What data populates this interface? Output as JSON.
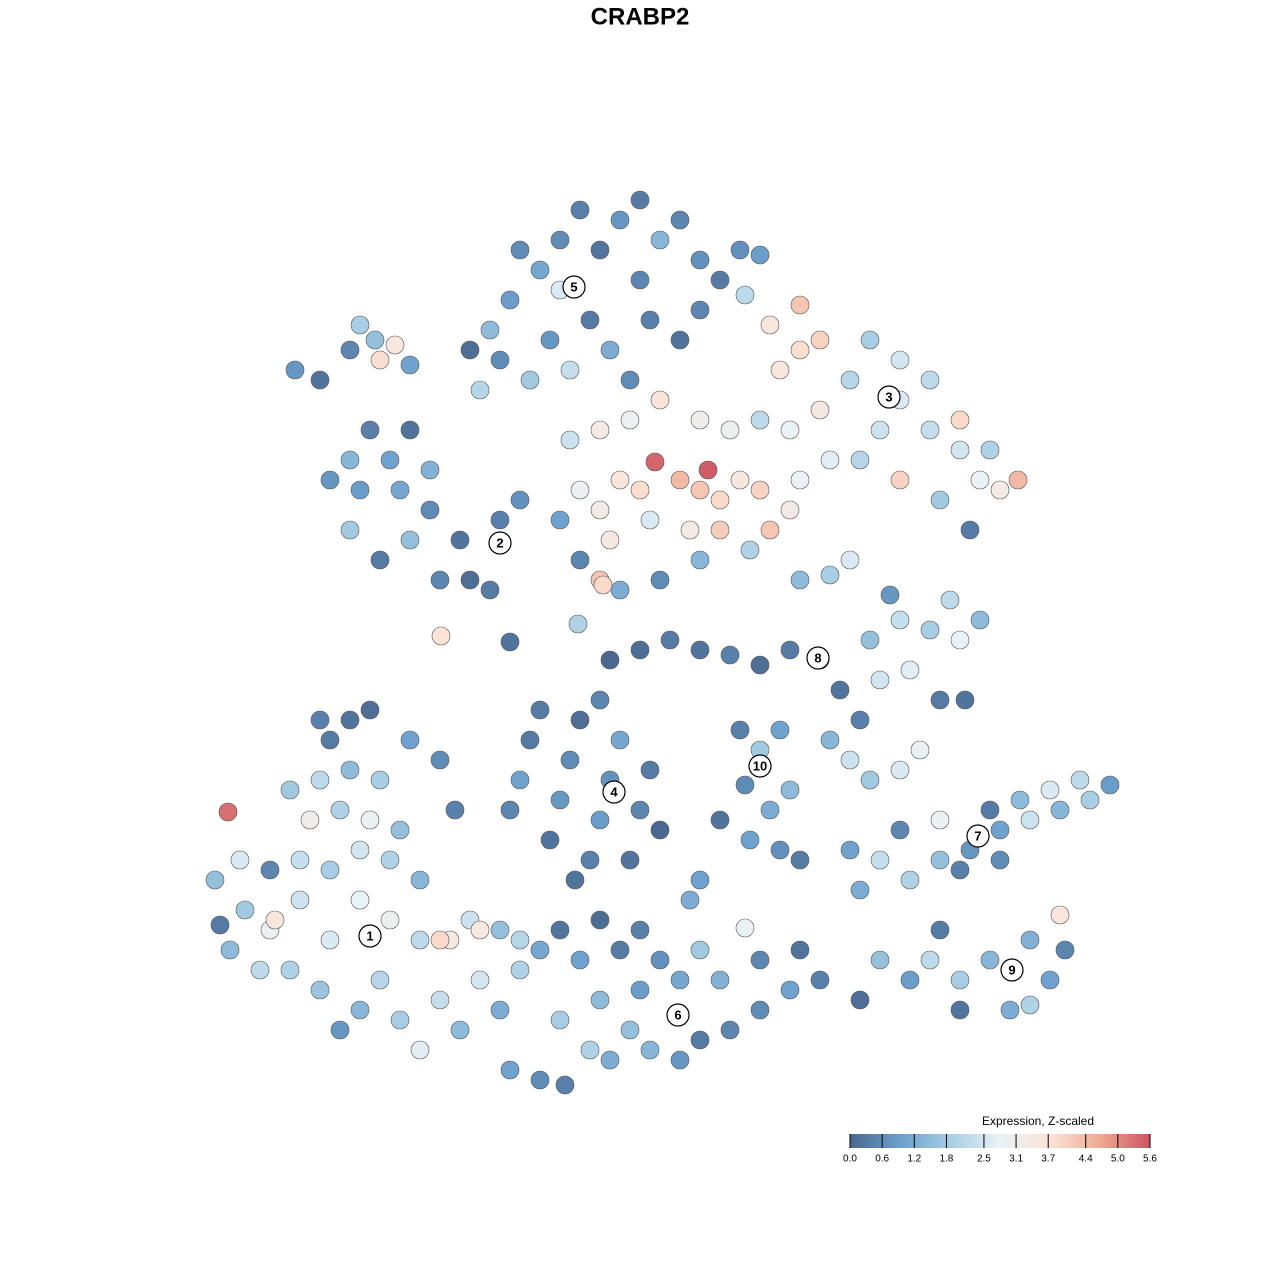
{
  "chart_data": {
    "type": "scatter",
    "title": "CRABP2",
    "xlim": [
      0,
      1280
    ],
    "ylim": [
      1280,
      0
    ],
    "colorbar_title": "Expression, Z-scaled",
    "clim": [
      0,
      5.6
    ],
    "colorscale": [
      "#4a6890",
      "#6b9fcc",
      "#a5cde3",
      "#e9f2f6",
      "#fbe3d6",
      "#efaa92",
      "#cb5461"
    ],
    "colorbar_ticks": [
      {
        "value": 0,
        "label": "0.0"
      },
      0.6,
      1.2,
      1.8,
      2.5,
      3.1,
      3.7,
      4.4,
      {
        "value": 5,
        "label": "5.0"
      },
      5.6
    ],
    "cluster_labels": [
      {
        "label": "1",
        "x": 370,
        "y": 344
      },
      {
        "label": "2",
        "x": 500,
        "y": 737
      },
      {
        "label": "3",
        "x": 889,
        "y": 883
      },
      {
        "label": "4",
        "x": 614,
        "y": 488
      },
      {
        "label": "5",
        "x": 574,
        "y": 993
      },
      {
        "label": "6",
        "x": 678,
        "y": 265
      },
      {
        "label": "7",
        "x": 978,
        "y": 444
      },
      {
        "label": "8",
        "x": 818,
        "y": 622
      },
      {
        "label": "9",
        "x": 1012,
        "y": 310
      },
      {
        "label": "10",
        "x": 760,
        "y": 514
      }
    ],
    "points": [
      [
        230,
        330,
        1.5
      ],
      [
        260,
        310,
        2.2
      ],
      [
        245,
        370,
        1.8
      ],
      [
        215,
        400,
        1.6
      ],
      [
        240,
        420,
        2.6
      ],
      [
        270,
        350,
        2.9
      ],
      [
        290,
        310,
        2.0
      ],
      [
        300,
        380,
        2.4
      ],
      [
        320,
        290,
        1.7
      ],
      [
        340,
        250,
        0.8
      ],
      [
        360,
        270,
        1.4
      ],
      [
        380,
        300,
        2.1
      ],
      [
        400,
        260,
        1.9
      ],
      [
        420,
        230,
        2.7
      ],
      [
        440,
        280,
        2.3
      ],
      [
        460,
        250,
        1.5
      ],
      [
        480,
        300,
        2.5
      ],
      [
        500,
        270,
        1.2
      ],
      [
        520,
        310,
        2.0
      ],
      [
        540,
        330,
        1.1
      ],
      [
        330,
        340,
        2.6
      ],
      [
        360,
        380,
        2.8
      ],
      [
        390,
        360,
        3.0
      ],
      [
        420,
        340,
        2.2
      ],
      [
        450,
        340,
        3.4
      ],
      [
        470,
        360,
        2.4
      ],
      [
        500,
        350,
        1.6
      ],
      [
        300,
        420,
        2.3
      ],
      [
        330,
        410,
        1.9
      ],
      [
        360,
        430,
        2.5
      ],
      [
        390,
        420,
        2.0
      ],
      [
        420,
        400,
        1.4
      ],
      [
        310,
        460,
        3.2
      ],
      [
        340,
        470,
        2.0
      ],
      [
        370,
        460,
        2.9
      ],
      [
        400,
        450,
        1.6
      ],
      [
        290,
        490,
        1.8
      ],
      [
        320,
        500,
        2.2
      ],
      [
        350,
        510,
        1.5
      ],
      [
        380,
        500,
        1.9
      ],
      [
        330,
        540,
        0.3
      ],
      [
        350,
        560,
        0.2
      ],
      [
        370,
        570,
        0.1
      ],
      [
        320,
        560,
        0.4
      ],
      [
        410,
        540,
        1.0
      ],
      [
        440,
        520,
        0.6
      ],
      [
        228,
        468,
        5.3
      ],
      [
        275,
        360,
        3.6
      ],
      [
        440,
        340,
        3.9
      ],
      [
        480,
        350,
        3.4
      ],
      [
        220,
        355,
        0.3
      ],
      [
        270,
        410,
        0.5
      ],
      [
        455,
        470,
        0.4
      ],
      [
        510,
        210,
        1.0
      ],
      [
        540,
        200,
        0.6
      ],
      [
        565,
        195,
        0.4
      ],
      [
        590,
        230,
        2.0
      ],
      [
        610,
        220,
        1.2
      ],
      [
        630,
        250,
        1.6
      ],
      [
        650,
        230,
        1.4
      ],
      [
        680,
        220,
        0.8
      ],
      [
        700,
        240,
        0.3
      ],
      [
        730,
        250,
        0.5
      ],
      [
        760,
        270,
        0.6
      ],
      [
        790,
        290,
        1.0
      ],
      [
        820,
        300,
        0.4
      ],
      [
        560,
        260,
        1.9
      ],
      [
        600,
        280,
        1.5
      ],
      [
        640,
        290,
        0.9
      ],
      [
        680,
        300,
        1.1
      ],
      [
        720,
        300,
        1.3
      ],
      [
        760,
        320,
        0.5
      ],
      [
        800,
        330,
        0.2
      ],
      [
        580,
        320,
        1.0
      ],
      [
        620,
        330,
        0.3
      ],
      [
        660,
        320,
        0.7
      ],
      [
        700,
        330,
        1.8
      ],
      [
        520,
        340,
        2.1
      ],
      [
        560,
        350,
        0.2
      ],
      [
        600,
        360,
        0.1
      ],
      [
        640,
        350,
        0.4
      ],
      [
        745,
        352,
        2.8
      ],
      [
        690,
        380,
        1.2
      ],
      [
        700,
        400,
        1.0
      ],
      [
        880,
        320,
        1.6
      ],
      [
        910,
        300,
        0.9
      ],
      [
        930,
        320,
        2.2
      ],
      [
        960,
        300,
        1.9
      ],
      [
        990,
        320,
        1.4
      ],
      [
        1010,
        270,
        1.2
      ],
      [
        1030,
        275,
        2.0
      ],
      [
        1050,
        300,
        1.0
      ],
      [
        1065,
        330,
        0.5
      ],
      [
        1060,
        365,
        3.6
      ],
      [
        1030,
        340,
        1.3
      ],
      [
        960,
        270,
        0.2
      ],
      [
        940,
        350,
        0.3
      ],
      [
        860,
        280,
        0.1
      ],
      [
        860,
        390,
        1.2
      ],
      [
        880,
        420,
        2.3
      ],
      [
        910,
        400,
        2.0
      ],
      [
        940,
        420,
        1.6
      ],
      [
        970,
        430,
        0.8
      ],
      [
        1000,
        450,
        1.0
      ],
      [
        1030,
        460,
        2.4
      ],
      [
        1060,
        470,
        1.4
      ],
      [
        1090,
        480,
        1.9
      ],
      [
        1110,
        495,
        0.9
      ],
      [
        1080,
        500,
        2.2
      ],
      [
        1050,
        490,
        2.6
      ],
      [
        1020,
        480,
        1.5
      ],
      [
        990,
        470,
        0.3
      ],
      [
        960,
        410,
        0.4
      ],
      [
        940,
        460,
        2.9
      ],
      [
        1000,
        420,
        0.6
      ],
      [
        850,
        430,
        1.0
      ],
      [
        900,
        450,
        0.5
      ],
      [
        510,
        470,
        0.5
      ],
      [
        520,
        500,
        1.0
      ],
      [
        530,
        540,
        0.3
      ],
      [
        550,
        440,
        0.2
      ],
      [
        560,
        480,
        0.8
      ],
      [
        570,
        520,
        0.6
      ],
      [
        580,
        560,
        0.1
      ],
      [
        590,
        420,
        0.4
      ],
      [
        600,
        460,
        0.9
      ],
      [
        610,
        500,
        0.7
      ],
      [
        620,
        540,
        1.1
      ],
      [
        630,
        420,
        0.2
      ],
      [
        640,
        470,
        0.5
      ],
      [
        650,
        510,
        0.3
      ],
      [
        660,
        450,
        0.0
      ],
      [
        540,
        570,
        0.3
      ],
      [
        600,
        580,
        0.5
      ],
      [
        575,
        400,
        0.2
      ],
      [
        750,
        440,
        1.0
      ],
      [
        780,
        430,
        0.7
      ],
      [
        770,
        470,
        1.2
      ],
      [
        745,
        495,
        0.6
      ],
      [
        790,
        490,
        1.5
      ],
      [
        760,
        530,
        1.8
      ],
      [
        780,
        550,
        1.0
      ],
      [
        740,
        550,
        0.4
      ],
      [
        720,
        460,
        0.2
      ],
      [
        800,
        420,
        0.3
      ],
      [
        830,
        540,
        1.4
      ],
      [
        850,
        520,
        2.4
      ],
      [
        870,
        500,
        1.8
      ],
      [
        900,
        510,
        2.6
      ],
      [
        920,
        530,
        2.9
      ],
      [
        860,
        560,
        0.4
      ],
      [
        840,
        590,
        0.2
      ],
      [
        880,
        600,
        2.5
      ],
      [
        910,
        610,
        2.7
      ],
      [
        940,
        580,
        0.3
      ],
      [
        965,
        580,
        0.2
      ],
      [
        870,
        640,
        1.6
      ],
      [
        900,
        660,
        2.3
      ],
      [
        930,
        650,
        1.9
      ],
      [
        960,
        640,
        2.8
      ],
      [
        980,
        660,
        1.5
      ],
      [
        890,
        685,
        0.8
      ],
      [
        950,
        680,
        2.2
      ],
      [
        820,
        620,
        0.6
      ],
      [
        790,
        630,
        0.3
      ],
      [
        760,
        615,
        0.1
      ],
      [
        730,
        625,
        0.4
      ],
      [
        700,
        630,
        0.2
      ],
      [
        670,
        640,
        0.3
      ],
      [
        640,
        630,
        0.1
      ],
      [
        610,
        620,
        0.0
      ],
      [
        330,
        800,
        0.8
      ],
      [
        350,
        820,
        1.4
      ],
      [
        370,
        850,
        0.4
      ],
      [
        390,
        820,
        1.0
      ],
      [
        410,
        850,
        0.2
      ],
      [
        430,
        810,
        1.3
      ],
      [
        350,
        750,
        1.8
      ],
      [
        380,
        720,
        0.3
      ],
      [
        410,
        740,
        1.6
      ],
      [
        440,
        700,
        0.5
      ],
      [
        470,
        700,
        0.1
      ],
      [
        490,
        690,
        0.3
      ],
      [
        460,
        740,
        0.2
      ],
      [
        430,
        770,
        0.6
      ],
      [
        400,
        790,
        1.1
      ],
      [
        500,
        760,
        0.4
      ],
      [
        520,
        780,
        0.7
      ],
      [
        360,
        790,
        0.9
      ],
      [
        295,
        910,
        0.8
      ],
      [
        320,
        900,
        0.2
      ],
      [
        350,
        930,
        0.5
      ],
      [
        375,
        940,
        1.6
      ],
      [
        395,
        935,
        3.5
      ],
      [
        380,
        920,
        3.8
      ],
      [
        360,
        955,
        1.9
      ],
      [
        410,
        915,
        1.0
      ],
      [
        560,
        760,
        1.0
      ],
      [
        580,
        790,
        2.9
      ],
      [
        600,
        770,
        3.2
      ],
      [
        620,
        800,
        3.6
      ],
      [
        640,
        790,
        3.8
      ],
      [
        655,
        818,
        5.4
      ],
      [
        680,
        800,
        4.4
      ],
      [
        700,
        790,
        4.2
      ],
      [
        708,
        810,
        5.5
      ],
      [
        720,
        780,
        3.9
      ],
      [
        740,
        800,
        3.5
      ],
      [
        760,
        790,
        4.0
      ],
      [
        770,
        750,
        4.2
      ],
      [
        790,
        770,
        3.3
      ],
      [
        800,
        800,
        2.9
      ],
      [
        830,
        820,
        2.7
      ],
      [
        610,
        740,
        3.4
      ],
      [
        650,
        760,
        2.6
      ],
      [
        690,
        750,
        3.3
      ],
      [
        720,
        750,
        4.1
      ],
      [
        750,
        730,
        2.0
      ],
      [
        700,
        720,
        1.4
      ],
      [
        660,
        700,
        0.6
      ],
      [
        620,
        690,
        1.2
      ],
      [
        600,
        700,
        4.2
      ],
      [
        580,
        720,
        0.5
      ],
      [
        800,
        700,
        1.5
      ],
      [
        830,
        705,
        1.9
      ],
      [
        850,
        720,
        2.6
      ],
      [
        570,
        840,
        2.4
      ],
      [
        600,
        850,
        3.3
      ],
      [
        630,
        860,
        2.9
      ],
      [
        660,
        880,
        3.7
      ],
      [
        700,
        860,
        3.1
      ],
      [
        730,
        850,
        3.0
      ],
      [
        760,
        860,
        2.2
      ],
      [
        790,
        850,
        2.8
      ],
      [
        820,
        870,
        3.4
      ],
      [
        780,
        910,
        3.6
      ],
      [
        800,
        930,
        3.8
      ],
      [
        820,
        940,
        4.0
      ],
      [
        800,
        975,
        4.2
      ],
      [
        770,
        955,
        3.6
      ],
      [
        860,
        820,
        2.1
      ],
      [
        880,
        850,
        2.4
      ],
      [
        900,
        880,
        2.6
      ],
      [
        930,
        850,
        2.3
      ],
      [
        960,
        830,
        2.5
      ],
      [
        980,
        800,
        2.8
      ],
      [
        1000,
        790,
        3.3
      ],
      [
        1018,
        800,
        4.4
      ],
      [
        990,
        830,
        2.0
      ],
      [
        960,
        860,
        3.9
      ],
      [
        930,
        900,
        2.2
      ],
      [
        900,
        920,
        2.5
      ],
      [
        870,
        940,
        1.9
      ],
      [
        900,
        800,
        4.0
      ],
      [
        940,
        780,
        1.8
      ],
      [
        970,
        750,
        0.3
      ],
      [
        850,
        900,
        2.1
      ],
      [
        480,
        890,
        2.1
      ],
      [
        500,
        920,
        0.6
      ],
      [
        490,
        950,
        1.5
      ],
      [
        510,
        980,
        0.9
      ],
      [
        530,
        900,
        1.8
      ],
      [
        550,
        940,
        0.8
      ],
      [
        570,
        910,
        2.3
      ],
      [
        590,
        960,
        0.3
      ],
      [
        610,
        930,
        1.2
      ],
      [
        630,
        900,
        0.6
      ],
      [
        650,
        960,
        0.4
      ],
      [
        680,
        940,
        0.2
      ],
      [
        700,
        970,
        0.5
      ],
      [
        720,
        1000,
        0.3
      ],
      [
        740,
        1030,
        0.7
      ],
      [
        760,
        1025,
        0.9
      ],
      [
        540,
        1010,
        1.1
      ],
      [
        560,
        1040,
        0.6
      ],
      [
        580,
        1070,
        0.4
      ],
      [
        600,
        1030,
        0.2
      ],
      [
        620,
        1060,
        0.8
      ],
      [
        640,
        1080,
        0.3
      ],
      [
        660,
        1040,
        1.4
      ],
      [
        680,
        1060,
        0.5
      ],
      [
        700,
        1020,
        0.7
      ],
      [
        520,
        1030,
        0.6
      ],
      [
        560,
        990,
        2.6
      ],
      [
        640,
        1000,
        0.5
      ],
      [
        470,
        930,
        0.1
      ],
      [
        745,
        985,
        2.2
      ],
      [
        441,
        644,
        3.7
      ],
      [
        510,
        638,
        0.2
      ],
      [
        578,
        656,
        2.0
      ],
      [
        603,
        695,
        3.9
      ]
    ]
  }
}
